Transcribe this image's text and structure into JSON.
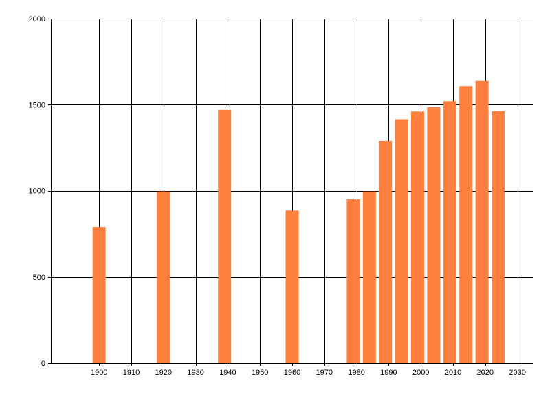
{
  "chart_data": {
    "type": "bar",
    "title": "",
    "xlabel": "",
    "ylabel": "",
    "xlim": [
      1885,
      2035
    ],
    "ylim": [
      0,
      2000
    ],
    "x_ticks": [
      1900,
      1910,
      1920,
      1930,
      1940,
      1950,
      1960,
      1970,
      1980,
      1990,
      2000,
      2010,
      2020,
      2030
    ],
    "y_ticks": [
      0,
      500,
      1000,
      1500,
      2000
    ],
    "grid": true,
    "legend": "none",
    "bar_color": "#ff7f3f",
    "series": [
      {
        "x": [
          1900,
          1920,
          1939,
          1960,
          1979,
          1984,
          1989,
          1994,
          1999,
          2004,
          2009,
          2014,
          2019,
          2024
        ],
        "values": [
          790,
          995,
          1470,
          885,
          950,
          995,
          1290,
          1415,
          1460,
          1485,
          1520,
          1608,
          1638,
          1462
        ]
      }
    ]
  }
}
